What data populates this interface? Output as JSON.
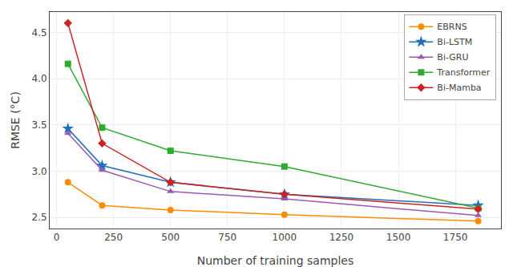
{
  "chart_data": {
    "type": "line",
    "x": [
      50,
      200,
      500,
      1000,
      1850
    ],
    "series": [
      {
        "name": "EBRNS",
        "color": "#FF8C00",
        "marker": "circle",
        "values": [
          2.88,
          2.63,
          2.58,
          2.53,
          2.46
        ]
      },
      {
        "name": "Bi-LSTM",
        "color": "#1E6FBF",
        "marker": "star",
        "values": [
          3.46,
          3.06,
          2.88,
          2.75,
          2.63
        ]
      },
      {
        "name": "Bi-GRU",
        "color": "#9B59B6",
        "marker": "triangle-up",
        "values": [
          3.41,
          3.01,
          2.78,
          2.7,
          2.52
        ]
      },
      {
        "name": "Transformer",
        "color": "#2EAA2E",
        "marker": "square",
        "values": [
          4.16,
          3.47,
          3.22,
          3.05,
          2.6
        ]
      },
      {
        "name": "Bi-Mamba",
        "color": "#CC2222",
        "marker": "diamond",
        "values": [
          4.6,
          3.3,
          2.88,
          2.75,
          2.59
        ]
      }
    ],
    "xlabel": "Number of training samples",
    "ylabel": "RMSE (°C)",
    "xlim": [
      -30,
      1950
    ],
    "ylim": [
      2.38,
      4.72
    ],
    "xticks": [
      0,
      250,
      500,
      750,
      1000,
      1250,
      1500,
      1750
    ],
    "yticks": [
      2.5,
      {
        "value": 3.0,
        "label": "3.0"
      },
      3.5,
      {
        "value": 4.0,
        "label": "4.0"
      },
      4.5
    ],
    "grid": true,
    "legend": "upper right"
  }
}
